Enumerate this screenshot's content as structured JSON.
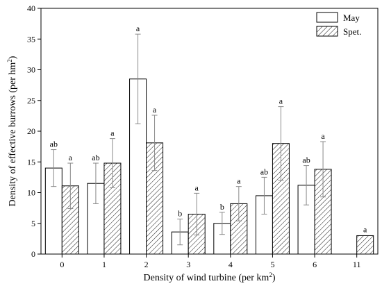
{
  "chart_data": {
    "type": "bar",
    "categories": [
      "0",
      "1",
      "2",
      "3",
      "4",
      "5",
      "6",
      "11"
    ],
    "series": [
      {
        "name": "May",
        "pattern": "plain",
        "values": [
          14.0,
          11.5,
          28.5,
          3.6,
          5.0,
          9.5,
          11.2,
          null
        ],
        "errors": [
          3.0,
          3.3,
          7.3,
          2.1,
          1.8,
          3.0,
          3.2,
          null
        ],
        "labels": [
          "ab",
          "ab",
          "a",
          "b",
          "b",
          "ab",
          "ab",
          ""
        ]
      },
      {
        "name": "Spet.",
        "pattern": "hatched",
        "values": [
          11.1,
          14.8,
          18.1,
          6.5,
          8.2,
          18.0,
          13.8,
          3.0
        ],
        "errors": [
          3.7,
          4.0,
          4.5,
          3.4,
          2.8,
          6.0,
          4.5,
          null
        ],
        "labels": [
          "a",
          "a",
          "a",
          "a",
          "a",
          "a",
          "a",
          "a"
        ]
      }
    ],
    "xlabel": {
      "text": "Density of wind turbine  (per km",
      "sup": "2",
      "tail": ")"
    },
    "ylabel": {
      "text": "Density of effective burrows  (per hm",
      "sup": "2",
      "tail": ")"
    },
    "ylim": [
      0,
      40
    ],
    "yticks": [
      0,
      5,
      10,
      15,
      20,
      25,
      30,
      35,
      40
    ],
    "legend_position": "top-right",
    "grid": false,
    "colors": {
      "bar_fill": "#ffffff",
      "bar_stroke": "#000000",
      "hatch": "#000000",
      "error_bar": "#888888"
    }
  }
}
